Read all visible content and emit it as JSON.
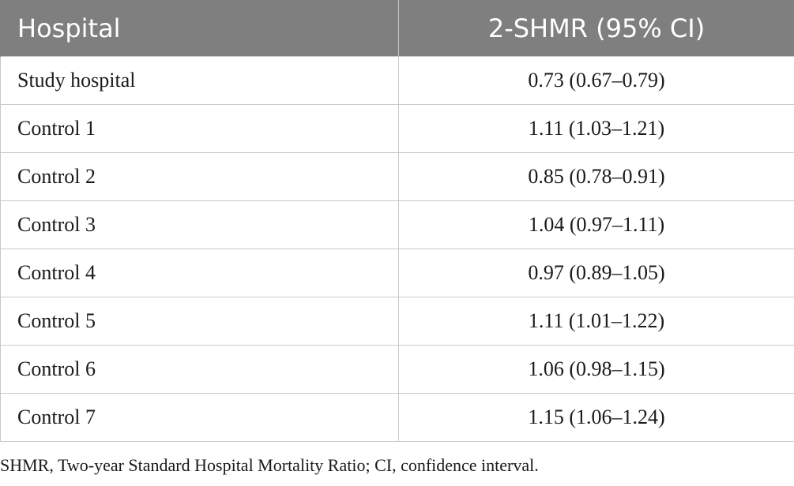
{
  "table": {
    "headers": {
      "hospital": "Hospital",
      "shmr": "2-SHMR (95% CI)"
    },
    "rows": [
      {
        "hospital": "Study hospital",
        "shmr": "0.73 (0.67–0.79)"
      },
      {
        "hospital": "Control 1",
        "shmr": "1.11 (1.03–1.21)"
      },
      {
        "hospital": "Control 2",
        "shmr": "0.85 (0.78–0.91)"
      },
      {
        "hospital": "Control 3",
        "shmr": "1.04 (0.97–1.11)"
      },
      {
        "hospital": "Control 4",
        "shmr": "0.97 (0.89–1.05)"
      },
      {
        "hospital": "Control 5",
        "shmr": "1.11 (1.01–1.22)"
      },
      {
        "hospital": "Control 6",
        "shmr": "1.06 (0.98–1.15)"
      },
      {
        "hospital": "Control 7",
        "shmr": "1.15 (1.06–1.24)"
      }
    ]
  },
  "footnote": "SHMR, Two-year Standard Hospital Mortality Ratio; CI, confidence interval.",
  "colors": {
    "header_background": "#7f7f7f",
    "header_text": "#ffffff",
    "grid_lines": "#c8c8c8",
    "body_text": "#1a1a1a"
  }
}
